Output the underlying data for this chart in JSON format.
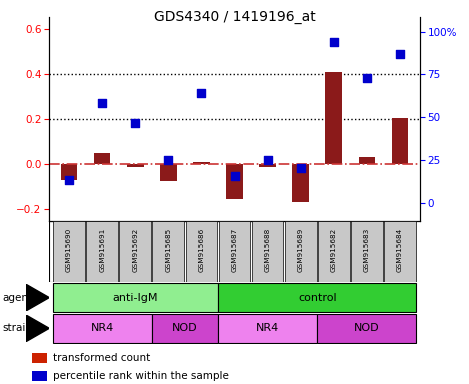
{
  "title": "GDS4340 / 1419196_at",
  "samples": [
    "GSM915690",
    "GSM915691",
    "GSM915692",
    "GSM915685",
    "GSM915686",
    "GSM915687",
    "GSM915688",
    "GSM915689",
    "GSM915682",
    "GSM915683",
    "GSM915684"
  ],
  "transformed_count": [
    -0.07,
    0.05,
    -0.01,
    -0.075,
    0.01,
    -0.155,
    -0.01,
    -0.165,
    0.41,
    0.03,
    0.205
  ],
  "percentile_rank_pct": [
    20,
    58,
    48,
    30,
    63,
    22,
    30,
    26,
    88,
    70,
    82
  ],
  "ylim_left": [
    -0.25,
    0.65
  ],
  "ylim_right": [
    -10.416,
    108.33
  ],
  "yticks_left": [
    -0.2,
    0.0,
    0.2,
    0.4,
    0.6
  ],
  "yticks_right": [
    0,
    25,
    50,
    75,
    100
  ],
  "ytick_labels_right": [
    "0",
    "25",
    "50",
    "75",
    "100%"
  ],
  "bar_color": "#8B1A1A",
  "dot_color": "#0000CC",
  "zero_line_color": "#CC3333",
  "grid_line_color": "#000000",
  "agent_labels": [
    {
      "text": "anti-IgM",
      "start": 0,
      "end": 5
    },
    {
      "text": "control",
      "start": 5,
      "end": 11
    }
  ],
  "strain_labels": [
    {
      "text": "NR4",
      "start": 0,
      "end": 3
    },
    {
      "text": "NOD",
      "start": 3,
      "end": 5
    },
    {
      "text": "NR4",
      "start": 5,
      "end": 8
    },
    {
      "text": "NOD",
      "start": 8,
      "end": 11
    }
  ],
  "agent_color_light": "#90EE90",
  "agent_color_dark": "#32CD32",
  "strain_color_light": "#EE82EE",
  "strain_color_dark": "#CC44CC",
  "tick_bg_color": "#C8C8C8",
  "legend_bar_label": "transformed count",
  "legend_dot_label": "percentile rank within the sample",
  "bar_width": 0.5,
  "dot_size": 40,
  "hline_dotted_values": [
    0.2,
    0.4
  ],
  "bar_color_red": "#CC2200",
  "dot_color_blue": "#0000CC"
}
